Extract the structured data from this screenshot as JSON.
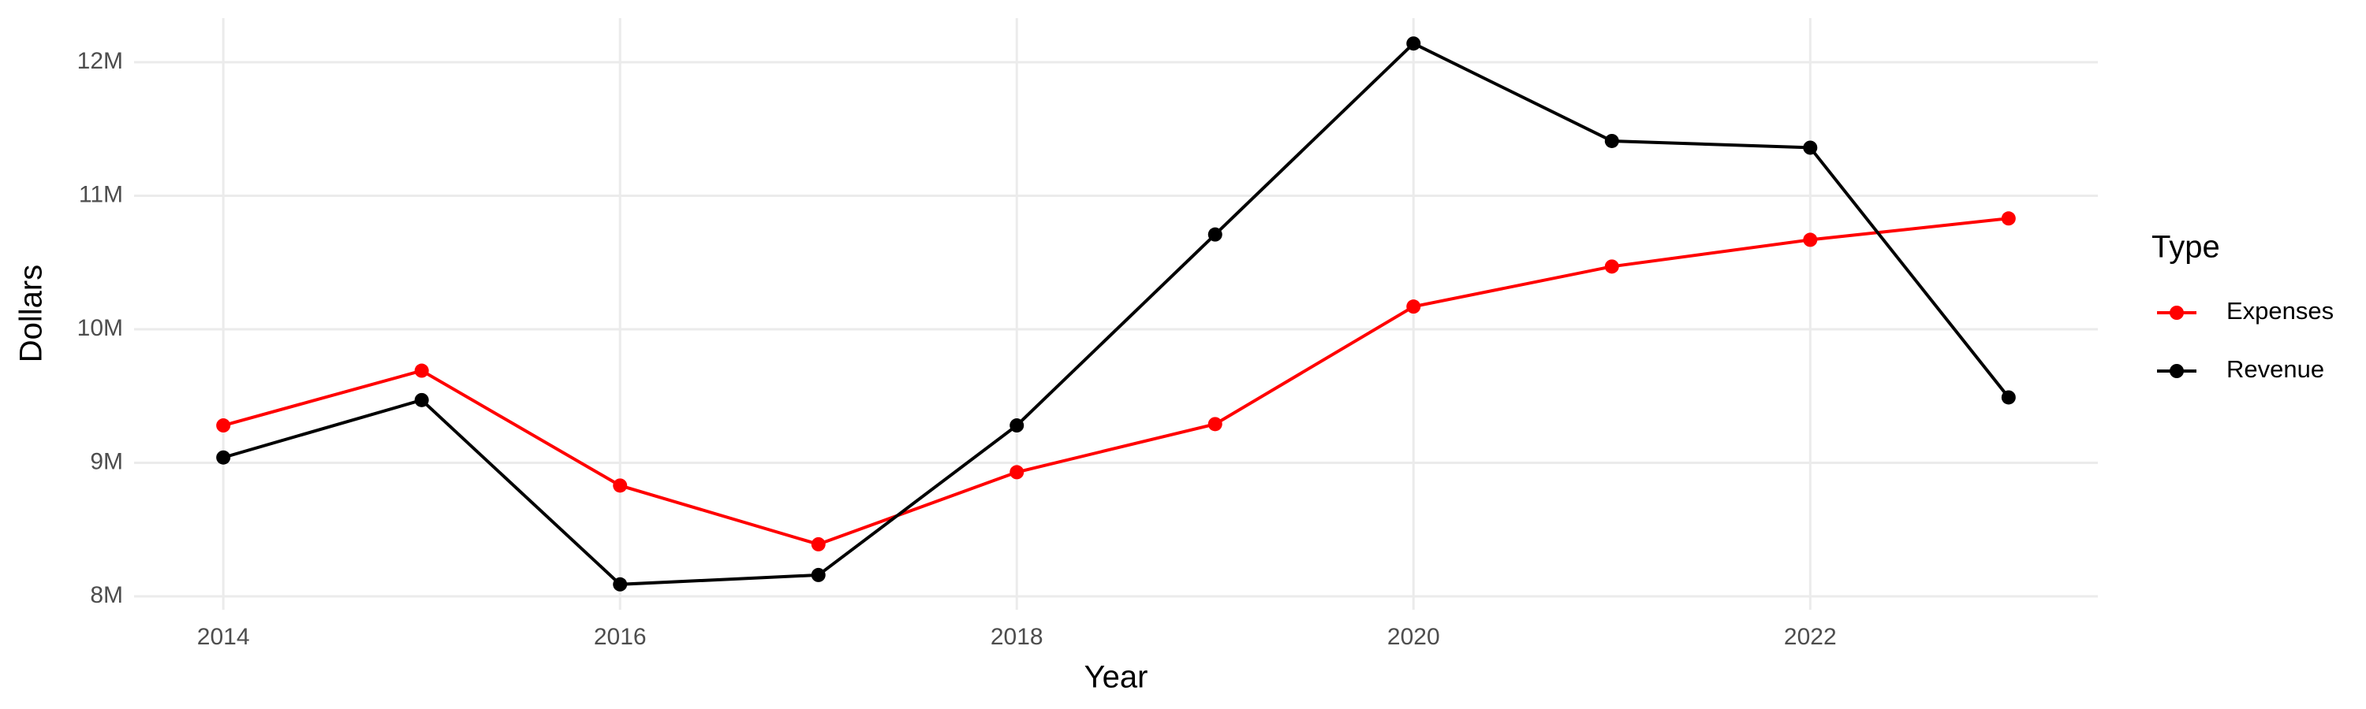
{
  "chart_data": {
    "type": "line",
    "x_label": "Year",
    "y_label": "Dollars",
    "legend_title": "Type",
    "legend": "right",
    "grid": true,
    "x": [
      2014,
      2015,
      2016,
      2017,
      2018,
      2019,
      2020,
      2021,
      2022,
      2023
    ],
    "series": [
      {
        "name": "Expenses",
        "color": "#ff0000",
        "values": [
          9280000,
          9690000,
          8830000,
          8390000,
          8930000,
          9290000,
          10170000,
          10470000,
          10670000,
          10830000
        ]
      },
      {
        "name": "Revenue",
        "color": "#000000",
        "values": [
          9040000,
          9470000,
          8090000,
          8160000,
          9280000,
          10710000,
          12140000,
          11410000,
          11360000,
          9490000
        ]
      }
    ],
    "xlim": [
      2013.55,
      2023.45
    ],
    "xticks": [
      2014,
      2016,
      2018,
      2020,
      2022
    ],
    "ylim": [
      7900000,
      12330000
    ],
    "yticks": [
      {
        "value": 8000000,
        "label": "8M"
      },
      {
        "value": 9000000,
        "label": "9M"
      },
      {
        "value": 10000000,
        "label": "10M"
      },
      {
        "value": 11000000,
        "label": "11M"
      },
      {
        "value": 12000000,
        "label": "12M"
      }
    ]
  }
}
